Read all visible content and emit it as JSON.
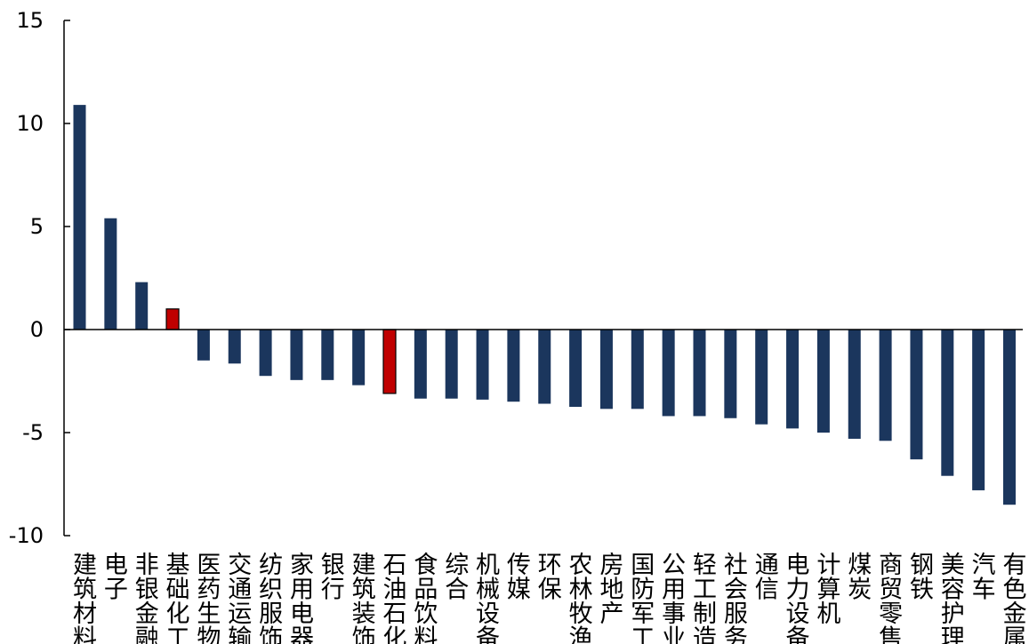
{
  "chart_data": {
    "type": "bar",
    "title": "",
    "xlabel": "",
    "ylabel": "",
    "ylim": [
      -10,
      15
    ],
    "yticks": [
      15,
      10,
      5,
      0,
      -5,
      -10
    ],
    "ytick_labels": [
      "15",
      "10",
      "5",
      "0",
      "-5",
      "-10"
    ],
    "grid": false,
    "legend": "none",
    "colors": {
      "default": "#1b365d",
      "highlight": "#c00000",
      "edge": "#000000",
      "axis": "#000000"
    },
    "categories": [
      "建筑材料",
      "电子",
      "非银金融",
      "基础化工",
      "医药生物",
      "交通运输",
      "纺织服饰",
      "家用电器",
      "银行",
      "建筑装饰",
      "石油石化",
      "食品饮料",
      "综合",
      "机械设备",
      "传媒",
      "环保",
      "农林牧渔",
      "房地产",
      "国防军工",
      "公用事业",
      "轻工制造",
      "社会服务",
      "通信",
      "电力设备",
      "计算机",
      "煤炭",
      "商贸零售",
      "钢铁",
      "美容护理",
      "汽车",
      "有色金属"
    ],
    "values": [
      10.9,
      5.4,
      2.3,
      1.0,
      -1.5,
      -1.65,
      -2.25,
      -2.45,
      -2.45,
      -2.7,
      -3.1,
      -3.35,
      -3.35,
      -3.4,
      -3.5,
      -3.6,
      -3.75,
      -3.85,
      -3.85,
      -4.2,
      -4.2,
      -4.3,
      -4.6,
      -4.8,
      -5.0,
      -5.3,
      -5.4,
      -6.3,
      -7.1,
      -7.8,
      -8.5
    ],
    "highlighted": [
      "基础化工",
      "石油石化"
    ]
  }
}
